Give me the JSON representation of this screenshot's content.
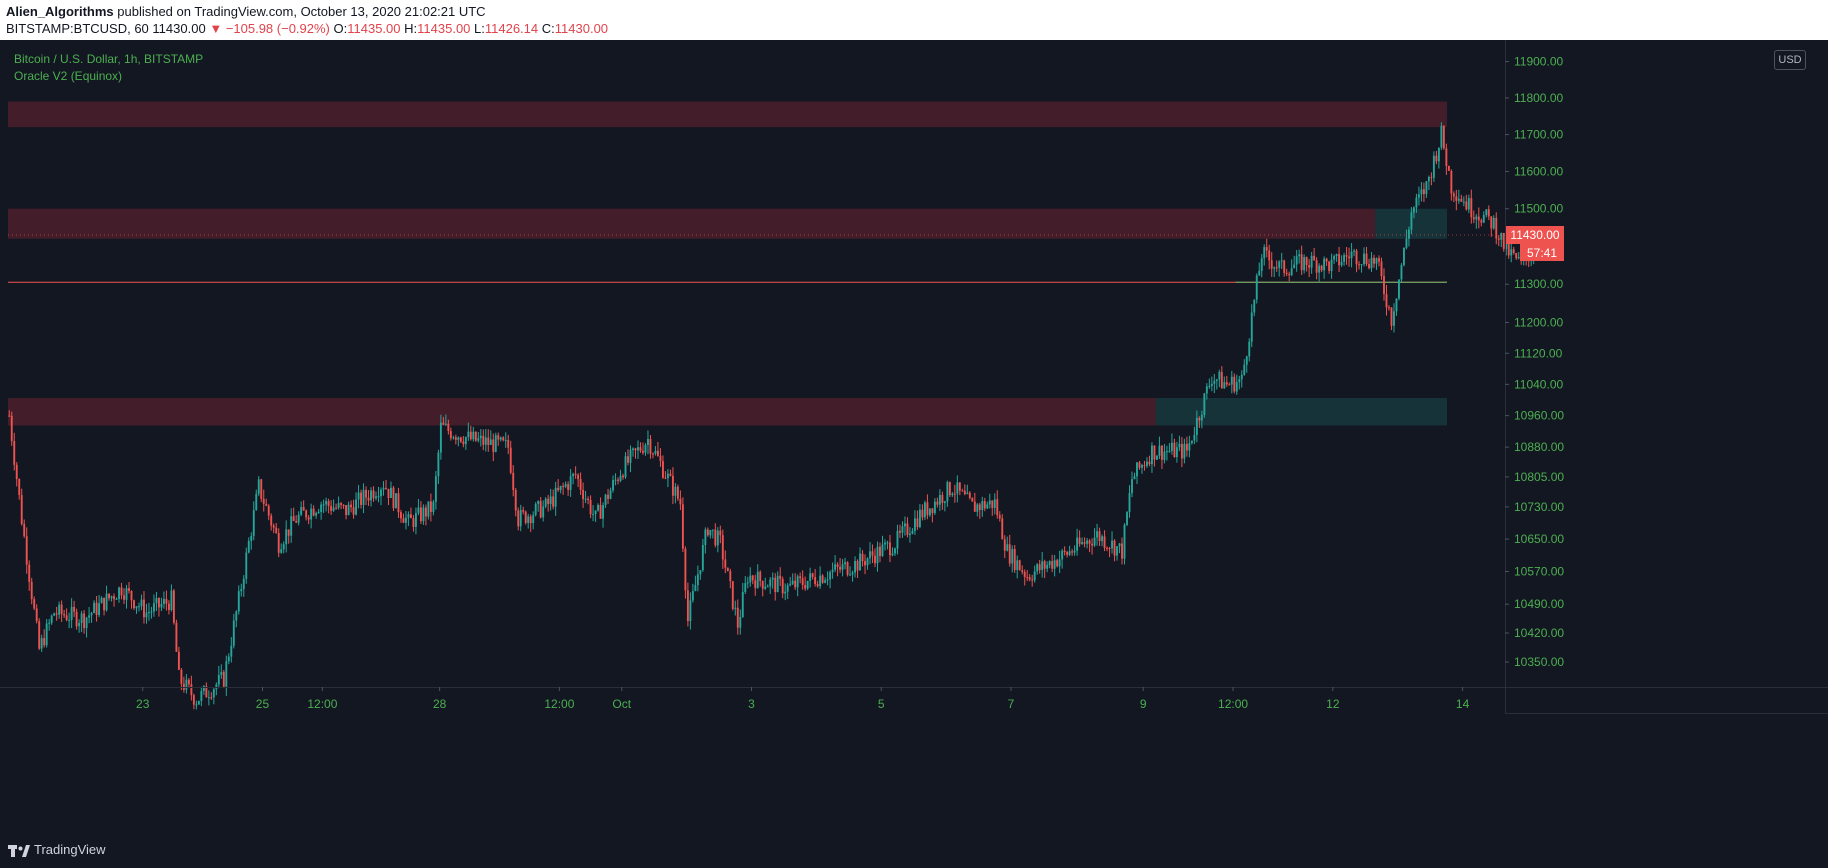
{
  "header": {
    "author": "Alien_Algorithms",
    "published_text": "published on TradingView.com, October 13, 2020 21:02:21 UTC",
    "symbol": "BITSTAMP:BTCUSD, 60",
    "last": "11430.00",
    "change": "−105.98 (−0.92%)",
    "open_label": "O:",
    "open": "11435.00",
    "high_label": "H:",
    "high": "11435.00",
    "low_label": "L:",
    "low": "11426.14",
    "close_label": "C:",
    "close": "11430.00"
  },
  "pane": {
    "title": "Bitcoin / U.S. Dollar, 1h, BITSTAMP",
    "indicator": "Oracle V2 (Equinox)",
    "currency": "USD"
  },
  "footer": {
    "brand": "TradingView"
  },
  "colors": {
    "background": "#131722",
    "up": "#26a69a",
    "down": "#ef5350",
    "axis_text": "#4caf50",
    "zone_red": "#f23645",
    "zone_green": "#26a69a"
  },
  "chart_data": {
    "type": "candlestick",
    "title": "Bitcoin / U.S. Dollar, 1h, BITSTAMP",
    "ylim": [
      10290,
      11960
    ],
    "y_scale": "log",
    "y_ticks": [
      "11900.00",
      "11800.00",
      "11700.00",
      "11600.00",
      "11500.00",
      "11430.00",
      "11300.00",
      "11200.00",
      "11120.00",
      "11040.00",
      "10960.00",
      "10880.00",
      "10805.00",
      "10730.00",
      "10650.00",
      "10570.00",
      "10490.00",
      "10420.00",
      "10350.00"
    ],
    "x_ticks": [
      {
        "label": "23",
        "bar": 54
      },
      {
        "label": "25",
        "bar": 102
      },
      {
        "label": "12:00",
        "bar": 126
      },
      {
        "label": "28",
        "bar": 173
      },
      {
        "label": "12:00",
        "bar": 221
      },
      {
        "label": "Oct",
        "bar": 246
      },
      {
        "label": "3",
        "bar": 298
      },
      {
        "label": "5",
        "bar": 350
      },
      {
        "label": "7",
        "bar": 402
      },
      {
        "label": "9",
        "bar": 455
      },
      {
        "label": "12:00",
        "bar": 491
      },
      {
        "label": "12",
        "bar": 531
      },
      {
        "label": "14",
        "bar": 583
      }
    ],
    "total_bars": 600,
    "last_price": "11430.00",
    "countdown": "57:41",
    "reference_lines": [
      {
        "price": 11305,
        "color": "#ef5350",
        "from_bar": 0,
        "to_bar": 600
      },
      {
        "price": 11305,
        "color": "#66bb6a",
        "from_bar": 492,
        "to_bar": 600
      }
    ],
    "zones": [
      {
        "low": 11720,
        "high": 11790,
        "color": "red",
        "from_bar": 0,
        "to_bar": 600
      },
      {
        "low": 11420,
        "high": 11500,
        "color": "red",
        "from_bar": 0,
        "to_bar": 548
      },
      {
        "low": 11420,
        "high": 11500,
        "color": "green",
        "from_bar": 548,
        "to_bar": 600
      },
      {
        "low": 10935,
        "high": 11005,
        "color": "red",
        "from_bar": 0,
        "to_bar": 460
      },
      {
        "low": 10935,
        "high": 11005,
        "color": "green",
        "from_bar": 460,
        "to_bar": 600
      }
    ],
    "price_path": [
      [
        0,
        10960
      ],
      [
        5,
        10700
      ],
      [
        12,
        10380
      ],
      [
        18,
        10470
      ],
      [
        30,
        10455
      ],
      [
        45,
        10530
      ],
      [
        55,
        10470
      ],
      [
        65,
        10500
      ],
      [
        68,
        10310
      ],
      [
        75,
        10260
      ],
      [
        86,
        10310
      ],
      [
        92,
        10500
      ],
      [
        100,
        10780
      ],
      [
        108,
        10640
      ],
      [
        115,
        10700
      ],
      [
        125,
        10740
      ],
      [
        135,
        10720
      ],
      [
        150,
        10790
      ],
      [
        160,
        10690
      ],
      [
        170,
        10730
      ],
      [
        173,
        10930
      ],
      [
        185,
        10900
      ],
      [
        200,
        10880
      ],
      [
        204,
        10700
      ],
      [
        215,
        10730
      ],
      [
        227,
        10810
      ],
      [
        235,
        10700
      ],
      [
        245,
        10820
      ],
      [
        256,
        10900
      ],
      [
        269,
        10740
      ],
      [
        272,
        10450
      ],
      [
        280,
        10680
      ],
      [
        285,
        10640
      ],
      [
        292,
        10440
      ],
      [
        296,
        10560
      ],
      [
        300,
        10550
      ],
      [
        312,
        10530
      ],
      [
        330,
        10570
      ],
      [
        340,
        10590
      ],
      [
        355,
        10640
      ],
      [
        365,
        10710
      ],
      [
        378,
        10780
      ],
      [
        386,
        10730
      ],
      [
        395,
        10740
      ],
      [
        400,
        10620
      ],
      [
        408,
        10560
      ],
      [
        420,
        10600
      ],
      [
        436,
        10660
      ],
      [
        446,
        10620
      ],
      [
        450,
        10800
      ],
      [
        458,
        10870
      ],
      [
        472,
        10870
      ],
      [
        482,
        11060
      ],
      [
        488,
        11040
      ],
      [
        494,
        11050
      ],
      [
        502,
        11380
      ],
      [
        510,
        11340
      ],
      [
        520,
        11360
      ],
      [
        530,
        11350
      ],
      [
        538,
        11380
      ],
      [
        548,
        11360
      ],
      [
        554,
        11210
      ],
      [
        562,
        11490
      ],
      [
        568,
        11560
      ],
      [
        574,
        11700
      ],
      [
        578,
        11560
      ],
      [
        586,
        11500
      ],
      [
        595,
        11460
      ],
      [
        600,
        11390
      ],
      [
        606,
        11350
      ],
      [
        615,
        11430
      ]
    ]
  }
}
